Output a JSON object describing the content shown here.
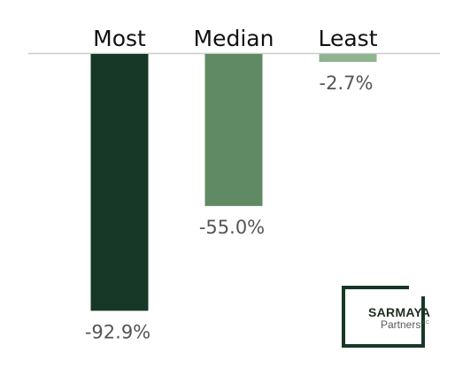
{
  "chart_data": {
    "type": "bar",
    "categories": [
      "Most",
      "Median",
      "Least"
    ],
    "values": [
      -92.9,
      -55.0,
      -2.7
    ],
    "value_labels": [
      "-92.9%",
      "-55.0%",
      "-2.7%"
    ],
    "ylim": [
      -100,
      0
    ],
    "colors": [
      "#173826",
      "#608a63",
      "#8fb58e"
    ],
    "grid": false,
    "legend": "none"
  },
  "logo": {
    "main": "SARMAYA",
    "sub": "Partners",
    "tm": "LLC"
  }
}
